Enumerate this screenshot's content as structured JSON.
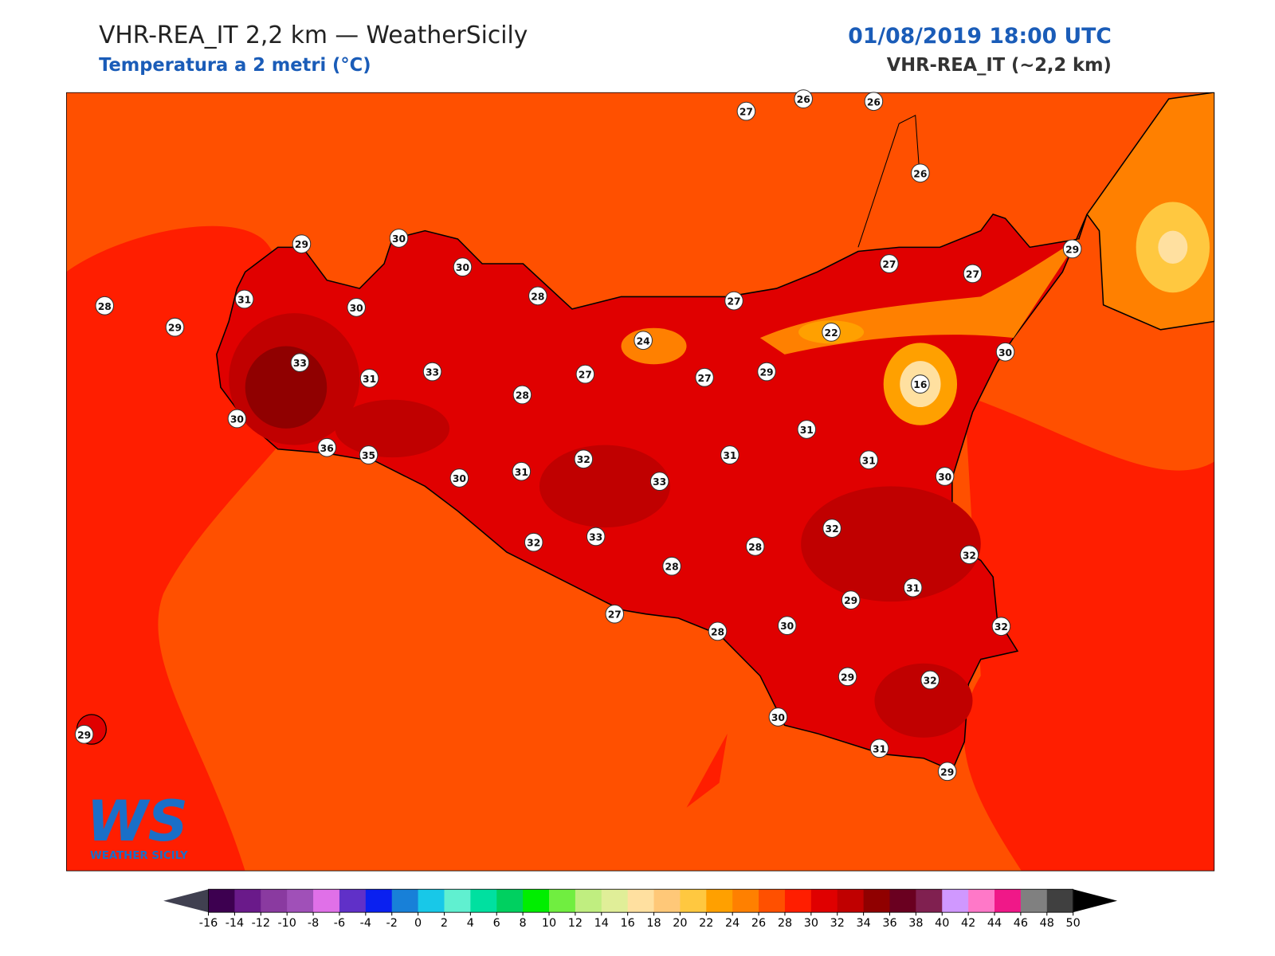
{
  "header": {
    "title": "VHR-REA_IT 2,2 km — WeatherSicily",
    "subtitle": "Temperatura a 2 metri (°C)",
    "date": "01/08/2019 18:00 UTC",
    "model": "VHR-REA_IT (~2,2 km)"
  },
  "stations": {
    "values": [
      27,
      26,
      26,
      26,
      29,
      30,
      30,
      29,
      27,
      27,
      28,
      31,
      30,
      28,
      27,
      29,
      24,
      22,
      30,
      33,
      31,
      33,
      27,
      27,
      29,
      16,
      28,
      30,
      31,
      36,
      35,
      32,
      31,
      31,
      30,
      31,
      33,
      30,
      32,
      32,
      33,
      28,
      32,
      28,
      31,
      29,
      27,
      30,
      28,
      32,
      29,
      32,
      30,
      31,
      29,
      29
    ]
  },
  "colorbar": {
    "ticks": [
      -16,
      -14,
      -12,
      -10,
      -8,
      -6,
      -4,
      -2,
      0,
      2,
      4,
      6,
      8,
      10,
      12,
      14,
      16,
      18,
      20,
      22,
      24,
      26,
      28,
      30,
      32,
      34,
      36,
      38,
      40,
      42,
      44,
      46,
      48,
      50
    ],
    "colors": [
      "#3d0050",
      "#6a1a8a",
      "#8a3aa0",
      "#a050b8",
      "#e070e8",
      "#6030c8",
      "#0a20f0",
      "#1880d8",
      "#18c8e8",
      "#60f0d0",
      "#00e0a0",
      "#00d060",
      "#00ee00",
      "#70ee40",
      "#c0ee80",
      "#e0ee98",
      "#ffe0a0",
      "#ffc878",
      "#ffc840",
      "#ffa000",
      "#ff8000",
      "#ff5000",
      "#ff1e00",
      "#e00000",
      "#c00000",
      "#900000",
      "#6a0020",
      "#802050",
      "#d098ff",
      "#ff78c8",
      "#f01888",
      "#808080",
      "#404040"
    ],
    "under_color": "#404050",
    "over_color": "#000000"
  },
  "logo": {
    "text": "WS",
    "caption": "WEATHER SICILY"
  }
}
